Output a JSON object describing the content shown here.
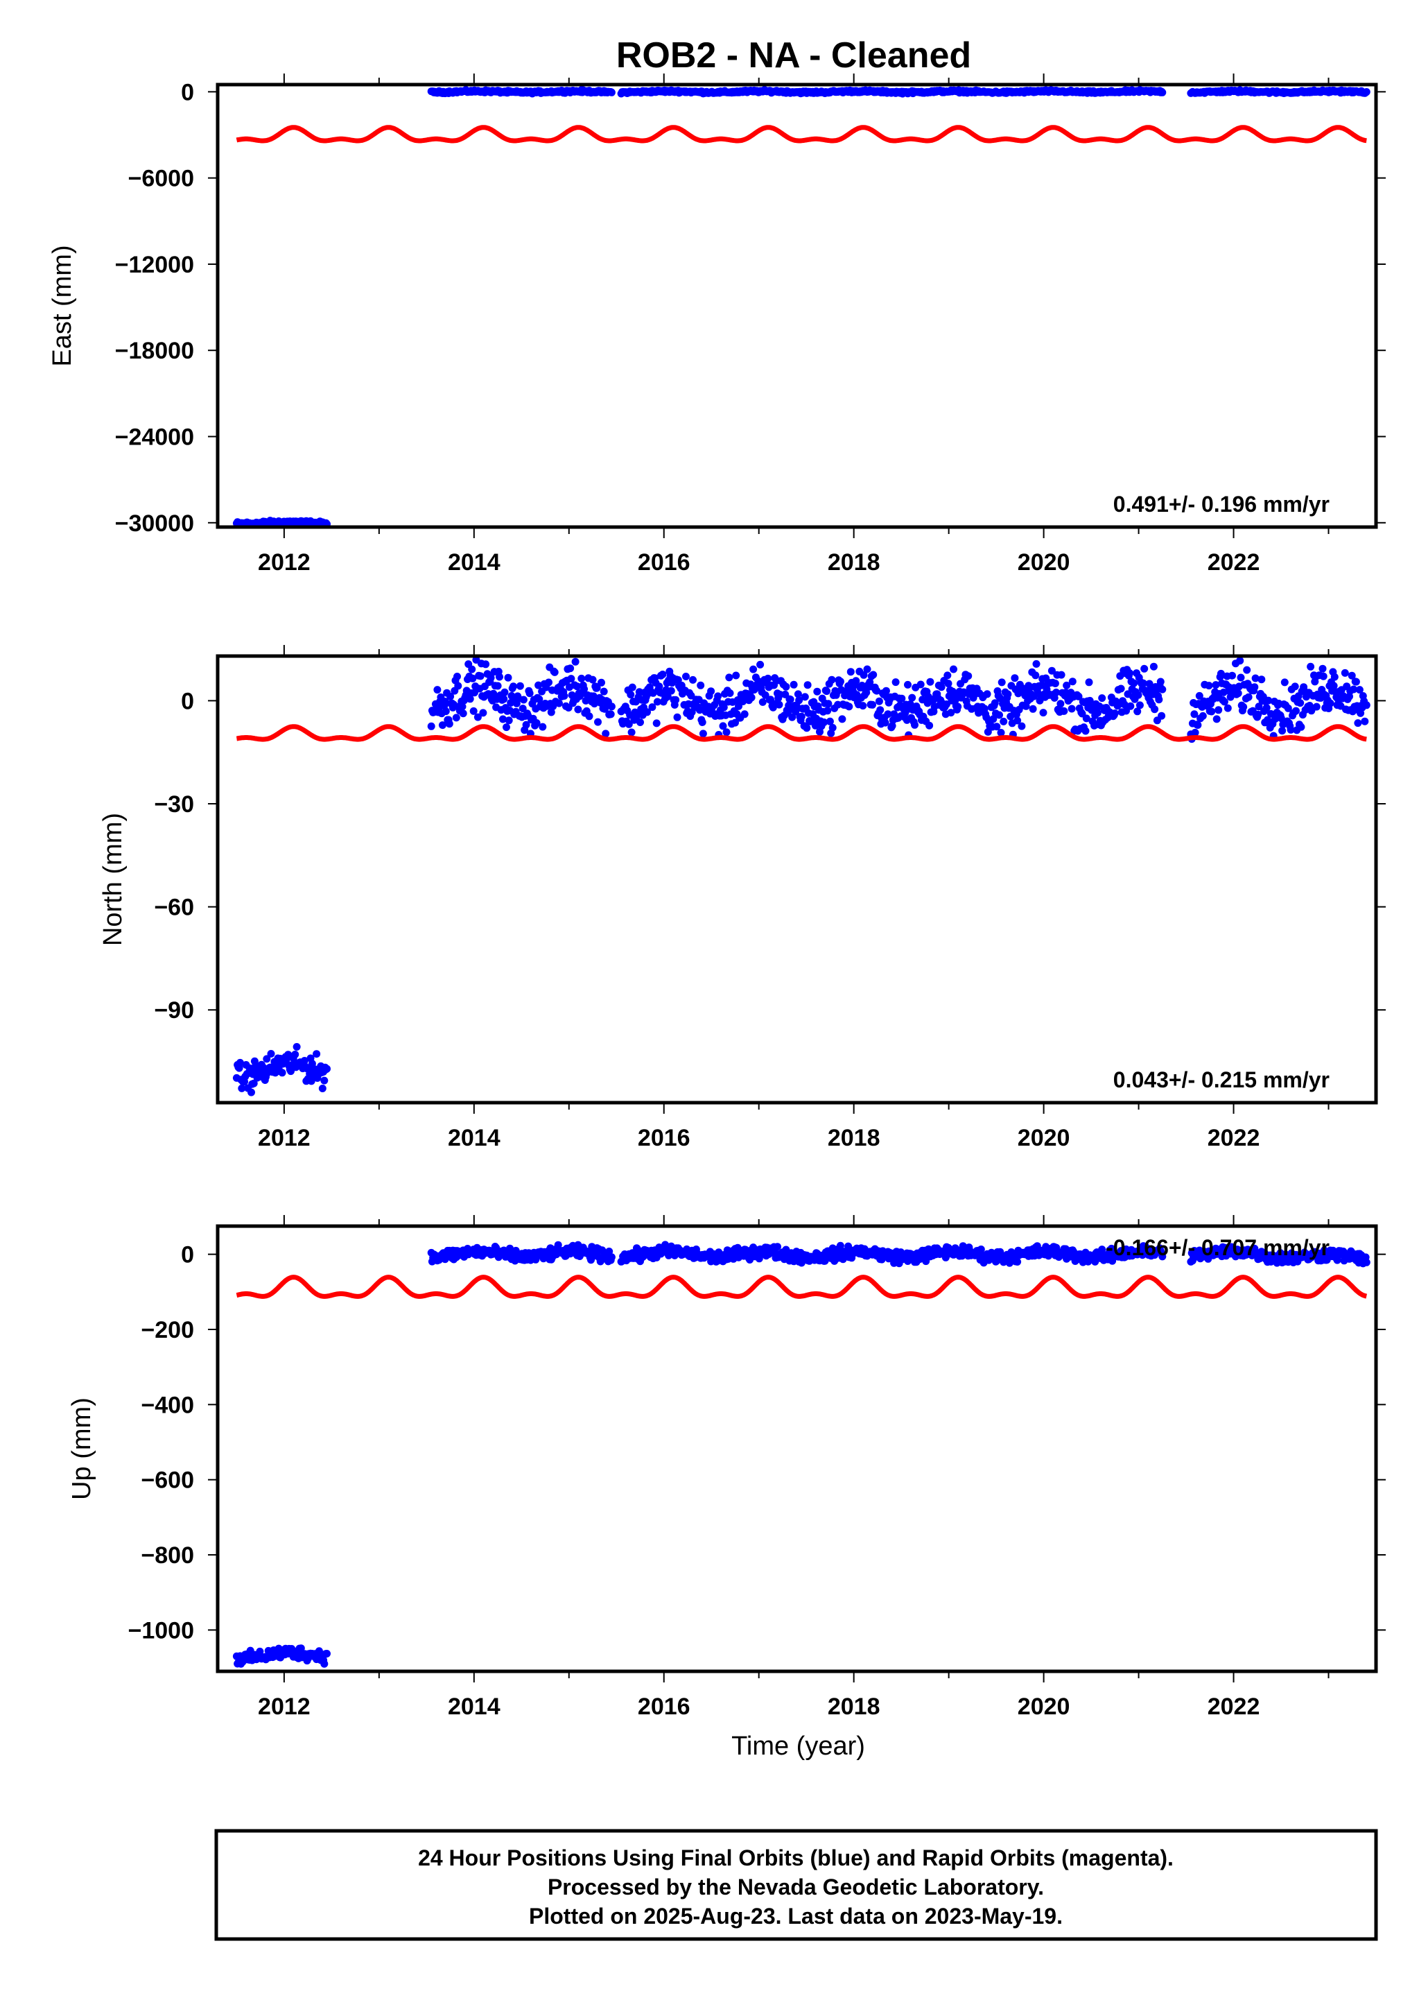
{
  "title": "ROB2  - NA - Cleaned",
  "colors": {
    "final_orbits": "#0000ff",
    "model": "#ff0000",
    "frame": "#000000"
  },
  "chart_data": [
    {
      "type": "scatter",
      "panel": "east",
      "title": "ROB2  - NA - Cleaned",
      "ylabel": "East (mm)",
      "xlabel": "",
      "xlim": [
        2011.3,
        2023.5
      ],
      "ylim": [
        -30300,
        500
      ],
      "x_ticks": [
        2012,
        2014,
        2016,
        2018,
        2020,
        2022
      ],
      "y_ticks": [
        0,
        -6000,
        -12000,
        -18000,
        -24000,
        -30000
      ],
      "y_tick_labels": [
        "0",
        "−6000",
        "−12000",
        "−18000",
        "−24000",
        "−30000"
      ],
      "rate_label": "0.491+/- 0.196 mm/yr",
      "series": [
        {
          "color": "blue",
          "segments": [
            {
              "x": [
                2011.5,
                2012.45
              ],
              "y": [
                -30000,
                -30000
              ],
              "noise": 60
            },
            {
              "x": [
                2013.55,
                2015.45
              ],
              "y": [
                0,
                0
              ],
              "noise": 40
            },
            {
              "x": [
                2015.55,
                2021.25
              ],
              "y": [
                0,
                0
              ],
              "noise": 40
            },
            {
              "x": [
                2021.55,
                2023.4
              ],
              "y": [
                0,
                0
              ],
              "noise": 40
            }
          ]
        },
        {
          "color": "red",
          "x": [
            2011.5,
            2023.4
          ],
          "mean": -3100,
          "amplitude": 400
        }
      ]
    },
    {
      "type": "scatter",
      "panel": "north",
      "ylabel": "North (mm)",
      "xlabel": "",
      "xlim": [
        2011.3,
        2023.5
      ],
      "ylim": [
        -117,
        13
      ],
      "x_ticks": [
        2012,
        2014,
        2016,
        2018,
        2020,
        2022
      ],
      "y_ticks": [
        0,
        -30,
        -60,
        -90
      ],
      "y_tick_labels": [
        "0",
        "−30",
        "−60",
        "−90"
      ],
      "rate_label": "0.043+/- 0.215 mm/yr",
      "series": [
        {
          "color": "blue",
          "segments": [
            {
              "x": [
                2011.5,
                2012.45
              ],
              "y": [
                -108,
                -107
              ],
              "noise": 2
            },
            {
              "x": [
                2013.55,
                2015.45
              ],
              "y": [
                1,
                1
              ],
              "noise": 3.5
            },
            {
              "x": [
                2015.55,
                2021.25
              ],
              "y": [
                0,
                0
              ],
              "noise": 3.5
            },
            {
              "x": [
                2021.55,
                2023.4
              ],
              "y": [
                0,
                1
              ],
              "noise": 3.5
            }
          ]
        },
        {
          "color": "red",
          "x": [
            2011.5,
            2023.4
          ],
          "mean": -10,
          "amplitude": 1.6
        }
      ]
    },
    {
      "type": "scatter",
      "panel": "up",
      "ylabel": "Up (mm)",
      "xlabel": "Time (year)",
      "xlim": [
        2011.3,
        2023.5
      ],
      "ylim": [
        -1110,
        75
      ],
      "x_ticks": [
        2012,
        2014,
        2016,
        2018,
        2020,
        2022
      ],
      "y_ticks": [
        0,
        -200,
        -400,
        -600,
        -800,
        -1000
      ],
      "y_tick_labels": [
        "0",
        "−200",
        "−400",
        "−600",
        "−800",
        "−1000"
      ],
      "rate_label": "-0.166+/- 0.707 mm/yr",
      "series": [
        {
          "color": "blue",
          "segments": [
            {
              "x": [
                2011.5,
                2012.45
              ],
              "y": [
                -1070,
                -1065
              ],
              "noise": 8
            },
            {
              "x": [
                2013.55,
                2015.45
              ],
              "y": [
                0,
                0
              ],
              "noise": 8
            },
            {
              "x": [
                2015.55,
                2021.25
              ],
              "y": [
                0,
                0
              ],
              "noise": 8
            },
            {
              "x": [
                2021.55,
                2023.4
              ],
              "y": [
                5,
                -10
              ],
              "noise": 8
            }
          ]
        },
        {
          "color": "red",
          "x": [
            2011.5,
            2023.4
          ],
          "mean": -95,
          "amplitude": 22
        }
      ]
    }
  ],
  "footer": {
    "line1": "24 Hour Positions Using Final Orbits (blue) and Rapid Orbits (magenta).",
    "line2": "Processed by the Nevada Geodetic Laboratory.",
    "line3": "Plotted on 2025-Aug-23. Last data on 2023-May-19."
  }
}
